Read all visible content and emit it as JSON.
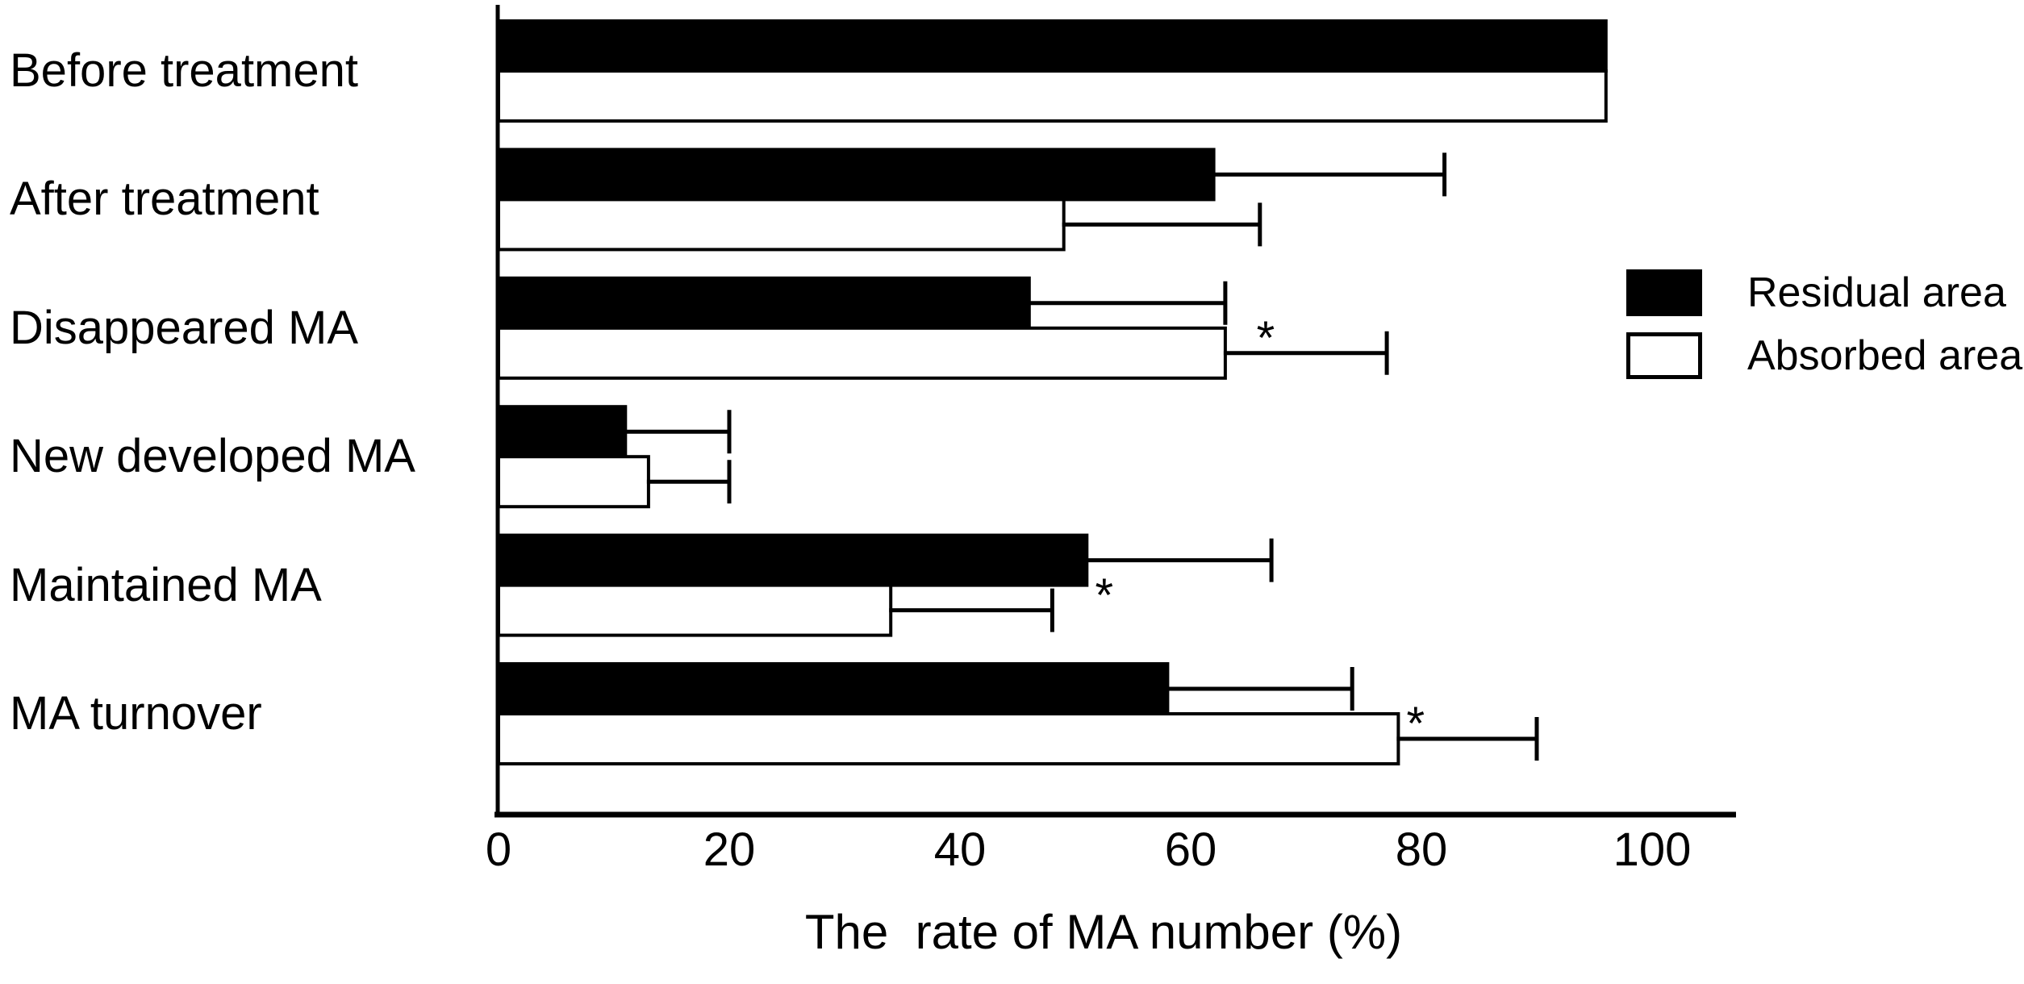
{
  "figure": {
    "background_color": "#ffffff",
    "ink_color": "#000000"
  },
  "chart_data": {
    "type": "bar",
    "orientation": "horizontal",
    "title": "",
    "xlabel": "The  rate of MA number (%)",
    "ylabel": "",
    "xlim": [
      0,
      107
    ],
    "xticks": [
      0,
      20,
      40,
      60,
      80,
      100
    ],
    "grid": false,
    "legend_position": "right",
    "categories": [
      "Before treatment",
      "After treatment",
      "Disappeared MA",
      "New developed MA",
      "Maintained MA",
      "MA turnover"
    ],
    "series": [
      {
        "name": "Residual area",
        "fill": "#000000",
        "values": [
          96,
          62,
          46,
          11,
          51,
          58
        ],
        "errors": [
          0,
          20,
          17,
          9,
          16,
          16
        ]
      },
      {
        "name": "Absorbed area",
        "fill": "#ffffff",
        "values": [
          96,
          49,
          63,
          13,
          34,
          78
        ],
        "errors": [
          0,
          17,
          14,
          7,
          14,
          12
        ]
      }
    ],
    "annotations": [
      {
        "category": "Disappeared MA",
        "row_index": 2,
        "symbol": "*",
        "x": 66.5
      },
      {
        "category": "Maintained MA",
        "row_index": 4,
        "symbol": "*",
        "x": 52.5
      },
      {
        "category": "MA turnover",
        "row_index": 5,
        "symbol": "*",
        "x": 79.5
      }
    ]
  }
}
